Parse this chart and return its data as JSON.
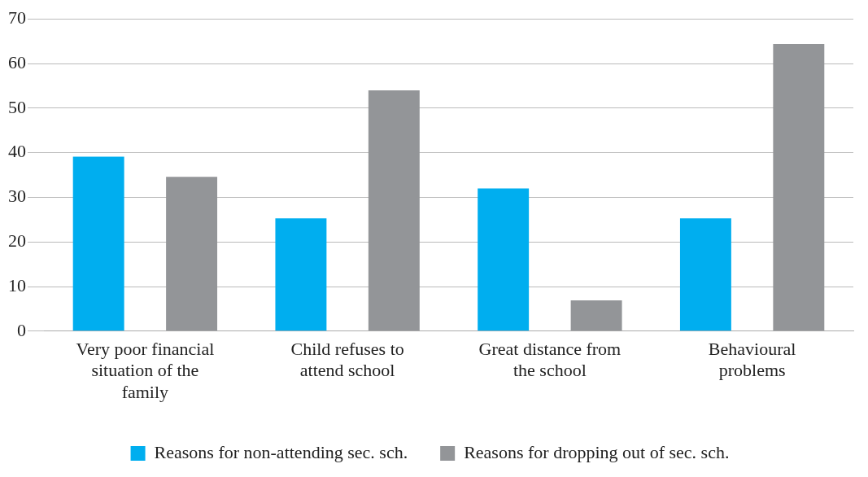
{
  "chart_data": {
    "type": "bar",
    "categories": [
      "Very poor financial situation of the family",
      "Child refuses to attend school",
      "Great distance from the school",
      "Behavioural problems"
    ],
    "series": [
      {
        "name": "Reasons for non-attending sec. sch.",
        "color": "#00aeef",
        "values": [
          39.1,
          25.3,
          32,
          25.3
        ]
      },
      {
        "name": "Reasons for dropping out of sec. sch.",
        "color": "#939598",
        "values": [
          34.6,
          54,
          6.9,
          64.4
        ]
      }
    ],
    "ylim": [
      0,
      70
    ],
    "yticks": [
      0,
      10,
      20,
      30,
      40,
      50,
      60,
      70
    ],
    "grid": "y",
    "legend": "bottom"
  }
}
